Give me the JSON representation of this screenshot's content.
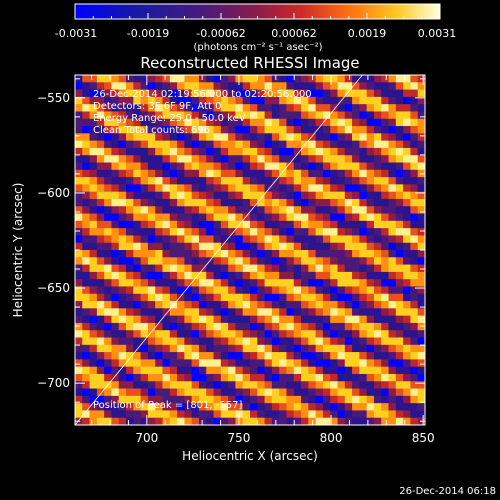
{
  "colorbar": {
    "ticks": [
      "-0.0031",
      "-0.0019",
      "-0.00062",
      "0.00062",
      "0.0019",
      "0.0031"
    ],
    "unit": "(photons cm⁻² s⁻¹ asec⁻²)"
  },
  "info": {
    "time_range": "26-Dec-2014 02:19:56.000 to 02:20:56.000",
    "detectors": "Detectors: 3F 6F 9F, Att 0",
    "energy": "Energy Range: 25.0 - 50.0 keV",
    "method": "Clean    Total counts: 696",
    "peak": "Position of Peak = [801, -557]"
  },
  "footer_timestamp": "26-Dec-2014 06:18",
  "chart_data": {
    "type": "heatmap",
    "title": "Reconstructed RHESSI Image",
    "xlabel": "Heliocentric X (arcsec)",
    "ylabel": "Heliocentric Y (arcsec)",
    "xlim": [
      661,
      851
    ],
    "ylim": [
      -722,
      -538
    ],
    "x_ticks": [
      700,
      750,
      800,
      850
    ],
    "y_ticks": [
      -550,
      -600,
      -650,
      -700
    ],
    "color_range": [
      -0.0031,
      0.0031
    ],
    "colormap": [
      "#0000ff",
      "#2a1490",
      "#4a1a7a",
      "#8b1c4a",
      "#c0282a",
      "#e8501c",
      "#ff9010",
      "#ffd020",
      "#fff090"
    ],
    "pattern": {
      "direction": "diagonal stripes, high-values along lines falling to the right",
      "stripe_period_arcsec": 18,
      "stripe_slope": -0.5
    },
    "peak_position": [
      801,
      -557
    ],
    "limb_line": {
      "from": [
        661,
        -722
      ],
      "to": [
        817,
        -538
      ]
    }
  }
}
